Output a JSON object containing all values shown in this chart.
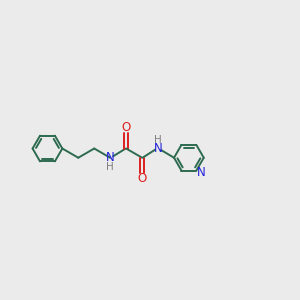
{
  "bg_color": "#ebebeb",
  "bond_color": "#2d6b50",
  "nitrogen_color": "#2020dd",
  "oxygen_color": "#dd2020",
  "h_color": "#808080",
  "line_width": 1.4,
  "figsize": [
    3.0,
    3.0
  ],
  "dpi": 100,
  "xlim": [
    0,
    10
  ],
  "ylim": [
    2.5,
    7.5
  ]
}
